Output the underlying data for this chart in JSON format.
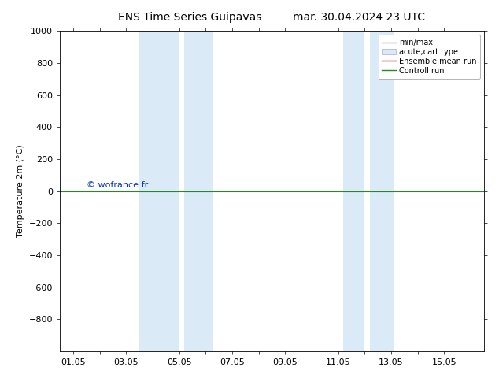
{
  "title_left": "ENS Time Series Guipavas",
  "title_right": "mar. 30.04.2024 23 UTC",
  "ylabel": "Temperature 2m (°C)",
  "ylim_top": -1000,
  "ylim_bottom": 1000,
  "yticks": [
    -800,
    -600,
    -400,
    -200,
    0,
    200,
    400,
    600,
    800,
    1000
  ],
  "xtick_labels": [
    "01.05",
    "03.05",
    "05.05",
    "07.05",
    "09.05",
    "11.05",
    "13.05",
    "15.05"
  ],
  "xtick_positions": [
    1,
    3,
    5,
    7,
    9,
    11,
    13,
    15
  ],
  "xlim_start": 0.5,
  "xlim_end": 16.5,
  "blue_bands": [
    [
      3.5,
      5.0
    ],
    [
      5.2,
      6.3
    ],
    [
      11.2,
      12.0
    ],
    [
      12.2,
      13.1
    ]
  ],
  "blue_color": "#daeaf7",
  "green_line_y": 0,
  "green_color": "#228B22",
  "red_color": "#cc0000",
  "watermark": "© wofrance.fr",
  "watermark_color": "#0033cc",
  "legend_items": [
    "min/max",
    "acute;cart type",
    "Ensemble mean run",
    "Controll run"
  ],
  "legend_line_color": "#999999",
  "legend_patch_color": "#daeaf7",
  "legend_red": "#cc0000",
  "legend_green": "#228B22",
  "background_color": "#ffffff",
  "title_fontsize": 10,
  "ylabel_fontsize": 8,
  "tick_fontsize": 8,
  "legend_fontsize": 7,
  "watermark_fontsize": 8
}
